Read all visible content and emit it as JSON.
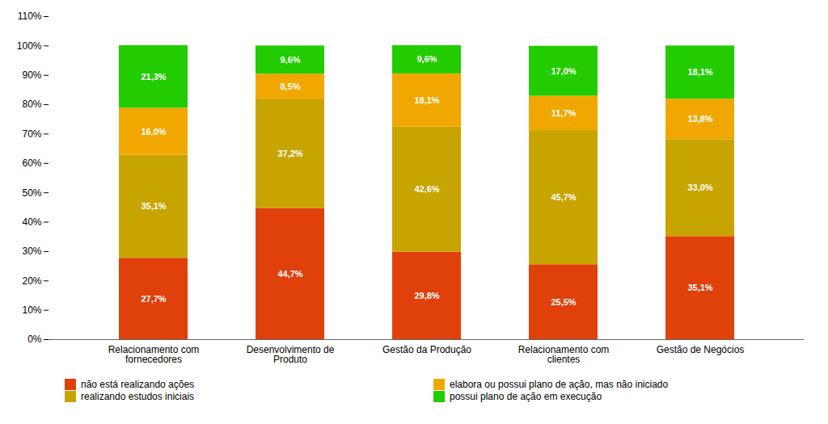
{
  "chart_data": {
    "type": "bar",
    "stacked": true,
    "data_labels": true,
    "grid": false,
    "legend": "bottom",
    "categories": [
      "Relacionamento com\nfornecedores",
      "Desenvolvimento de\nProduto",
      "Gestão da Produção",
      "Relacionamento com\nclientes",
      "Gestão de Negócios"
    ],
    "series": [
      {
        "name": "não está realizando ações",
        "color": "#e0400a",
        "values": [
          27.7,
          44.7,
          29.8,
          25.5,
          35.1
        ],
        "value_labels": [
          "27,7%",
          "44,7%",
          "29,8%",
          "25,5%",
          "35,1%"
        ]
      },
      {
        "name": "realizando estudos iniciais",
        "color": "#c8a400",
        "values": [
          35.1,
          37.2,
          42.6,
          45.7,
          33.0
        ],
        "value_labels": [
          "35,1%",
          "37,2%",
          "42,6%",
          "45,7%",
          "33,0%"
        ]
      },
      {
        "name": "elabora ou possui plano de ação, mas não iniciado",
        "color": "#f0a800",
        "values": [
          16.0,
          8.5,
          18.1,
          11.7,
          13.8
        ],
        "value_labels": [
          "16,0%",
          "8,5%",
          "18,1%",
          "11,7%",
          "13,8%"
        ]
      },
      {
        "name": "possui plano de ação em execução",
        "color": "#22cc00",
        "values": [
          21.3,
          9.6,
          9.6,
          17.0,
          18.1
        ],
        "value_labels": [
          "21,3%",
          "9,6%",
          "9,6%",
          "17,0%",
          "18,1%"
        ]
      }
    ],
    "ylim": [
      0,
      110
    ],
    "yticks": [
      {
        "value": 0,
        "label": "0%"
      },
      {
        "value": 10,
        "label": "10%"
      },
      {
        "value": 20,
        "label": "20%"
      },
      {
        "value": 30,
        "label": "30%"
      },
      {
        "value": 40,
        "label": "40%"
      },
      {
        "value": 50,
        "label": "50%"
      },
      {
        "value": 60,
        "label": "60%"
      },
      {
        "value": 70,
        "label": "70%"
      },
      {
        "value": 80,
        "label": "80%"
      },
      {
        "value": 90,
        "label": "90%"
      },
      {
        "value": 100,
        "label": "100%"
      },
      {
        "value": 110,
        "label": "110%"
      }
    ]
  }
}
